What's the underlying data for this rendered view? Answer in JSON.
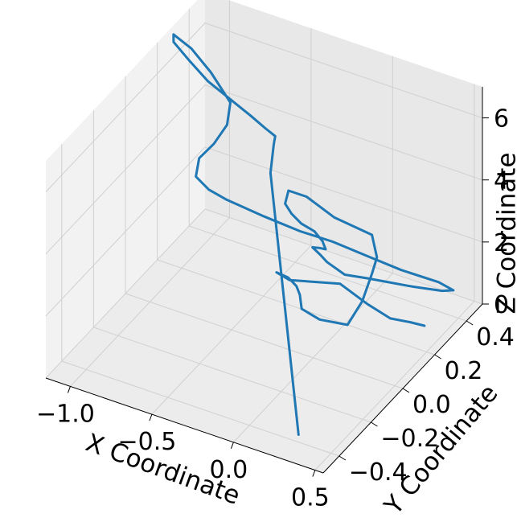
{
  "chart_data": {
    "type": "line3d",
    "title": "",
    "xlabel": "X Coordinate",
    "ylabel": "Y Coordinate",
    "zlabel": "Z Coordinate",
    "grid": true,
    "colors": {
      "line": "#1f77b4",
      "pane": "#f2f2f2",
      "grid": "#d0d0d0"
    },
    "x_ticks": [
      "−1.0",
      "−0.5",
      "0.0",
      "0.5"
    ],
    "y_ticks": [
      "−0.4",
      "−0.2",
      "0.0",
      "0.2",
      "0.4"
    ],
    "z_ticks": [
      "0",
      "2",
      "4",
      "6"
    ],
    "xlim": [
      -1.15,
      0.55
    ],
    "ylim": [
      -0.5,
      0.5
    ],
    "zlim": [
      0,
      7
    ],
    "series": [
      {
        "x": [
          0.39,
          0.32,
          0.22,
          0.1,
          -0.05,
          -0.32,
          -0.38,
          -0.27,
          -0.18,
          -0.12,
          -0.07,
          0.06,
          0.26,
          0.36,
          0.42,
          0.44,
          0.4,
          0.15,
          -0.05,
          -0.18,
          -0.22,
          -0.2,
          -0.16,
          -0.1,
          -0.06,
          -0.05,
          -0.1,
          -0.16,
          -0.13,
          -0.11,
          -0.04,
          0.04,
          0.26,
          0.4,
          0.45,
          0.36,
          0.14,
          -0.07,
          -0.26,
          -0.45,
          -0.66,
          -0.88,
          -0.98,
          -1.05,
          -1.02,
          -0.92,
          -0.82,
          -0.78,
          -0.88,
          -0.98,
          -1.07,
          -1.05,
          -0.93,
          -0.8,
          -0.64,
          -0.5,
          -0.39,
          -0.31,
          -0.3,
          -0.3,
          0.35
        ],
        "y": [
          0.3,
          0.28,
          0.26,
          0.24,
          0.22,
          0.18,
          0.16,
          0.12,
          0.08,
          0.04,
          0.0,
          -0.02,
          -0.05,
          -0.06,
          -0.06,
          -0.05,
          -0.04,
          -0.02,
          0.01,
          0.03,
          0.05,
          0.07,
          0.09,
          0.11,
          0.12,
          0.13,
          0.14,
          0.16,
          0.18,
          0.2,
          0.24,
          0.3,
          0.36,
          0.4,
          0.42,
          0.42,
          0.41,
          0.4,
          0.39,
          0.38,
          0.37,
          0.36,
          0.35,
          0.34,
          0.33,
          0.32,
          0.3,
          0.28,
          0.26,
          0.24,
          0.22,
          0.2,
          0.18,
          0.16,
          0.14,
          0.12,
          0.1,
          0.08,
          0.06,
          0.04,
          -0.45
        ],
        "z": [
          0.1,
          0.2,
          0.25,
          0.6,
          1.1,
          0.95,
          1.2,
          1.45,
          1.55,
          1.6,
          1.45,
          1.45,
          1.8,
          2.8,
          3.8,
          4.3,
          4.9,
          4.9,
          5.05,
          4.9,
          4.3,
          3.9,
          3.55,
          3.3,
          3.0,
          2.7,
          2.6,
          2.4,
          2.1,
          1.8,
          1.3,
          1.0,
          0.8,
          0.7,
          0.7,
          0.8,
          0.85,
          1.0,
          1.15,
          1.2,
          1.35,
          1.55,
          1.75,
          2.1,
          2.8,
          3.5,
          4.4,
          5.3,
          6.2,
          6.9,
          7.3,
          7.2,
          6.9,
          6.6,
          6.4,
          6.25,
          6.15,
          6.15,
          6.0,
          5.2,
          0.6
        ]
      }
    ]
  }
}
